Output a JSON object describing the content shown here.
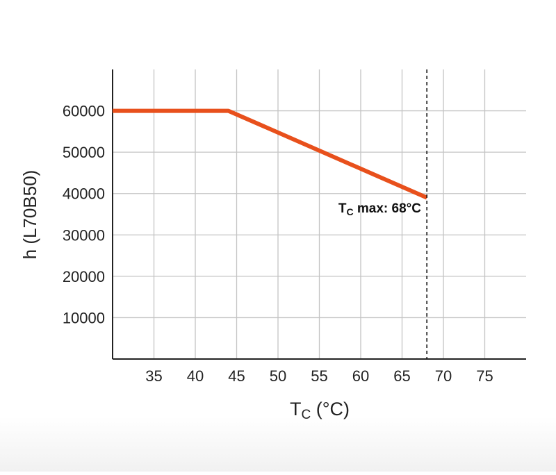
{
  "chart_data": {
    "type": "line",
    "xlabel": "T",
    "xlabel_sub": "C",
    "xlabel_unit": " (°C)",
    "ylabel": "h (L70B50)",
    "xlim": [
      30,
      80
    ],
    "ylim": [
      0,
      70000
    ],
    "x_ticks": [
      35,
      40,
      45,
      50,
      55,
      60,
      65,
      70,
      75
    ],
    "y_ticks": [
      10000,
      20000,
      30000,
      40000,
      50000,
      60000
    ],
    "y_tick_labels": [
      "10000",
      "20000",
      "30000",
      "40000",
      "50000",
      "60000"
    ],
    "grid": true,
    "series": [
      {
        "x": [
          30,
          44,
          68
        ],
        "y": [
          60000,
          60000,
          39000
        ],
        "color": "#e8501c"
      }
    ],
    "annotations": [
      {
        "type": "vline",
        "x": 68,
        "style": "dashed",
        "label_main": "T",
        "label_sub": "C",
        "label_rest": " max: 68°C"
      }
    ]
  }
}
